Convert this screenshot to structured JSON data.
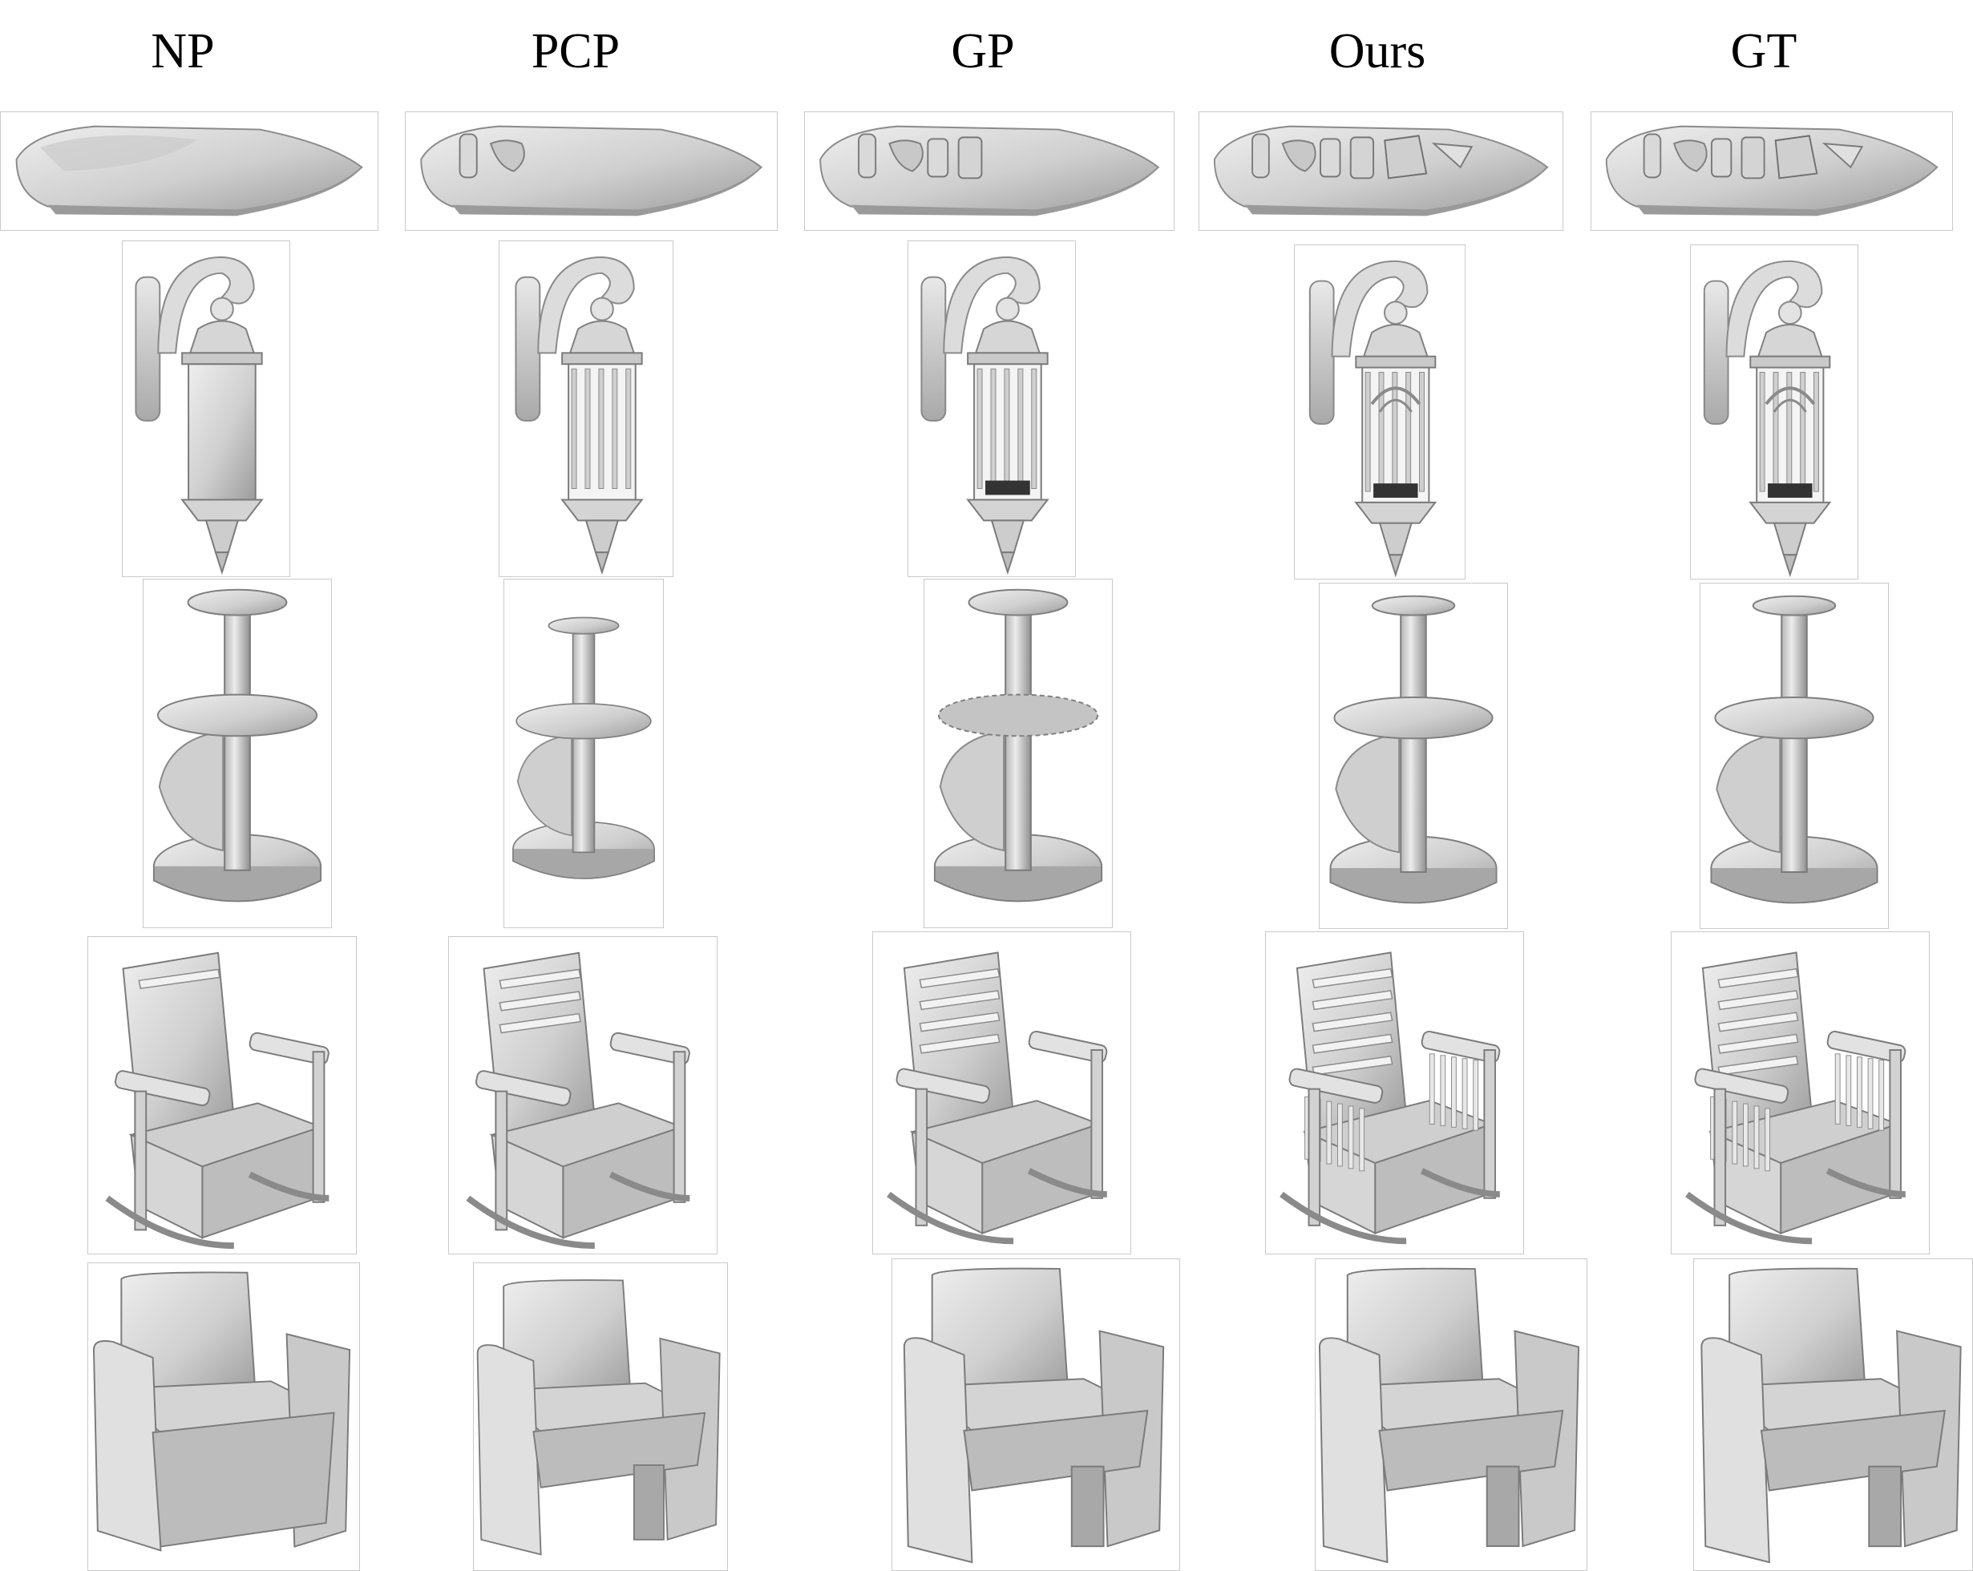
{
  "figure": {
    "columns": [
      {
        "key": "np",
        "label": "NP"
      },
      {
        "key": "pcp",
        "label": "PCP"
      },
      {
        "key": "gp",
        "label": "GP"
      },
      {
        "key": "ours",
        "label": "Ours"
      },
      {
        "key": "gt",
        "label": "GT"
      }
    ],
    "rows": [
      {
        "object": "boat"
      },
      {
        "object": "lantern"
      },
      {
        "object": "stand"
      },
      {
        "object": "rocking-chair"
      },
      {
        "object": "armchair"
      }
    ],
    "colors": {
      "mesh_light": "#e4e4e4",
      "mesh_mid": "#bdbdbd",
      "mesh_dark": "#8a8a8a",
      "mesh_shadow": "#3a3a3a",
      "frame": "#c9c9c9"
    }
  }
}
